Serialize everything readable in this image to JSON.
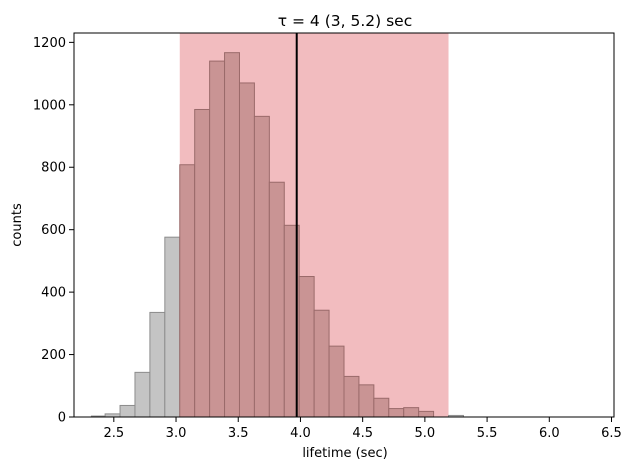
{
  "chart_data": {
    "type": "bar",
    "title": "τ = 4 (3, 5.2) sec",
    "xlabel": "lifetime (sec)",
    "ylabel": "counts",
    "xlim": [
      2.18,
      6.52
    ],
    "ylim": [
      0,
      1230
    ],
    "xticks": [
      {
        "value": 2.5,
        "label": "2.5"
      },
      {
        "value": 3.0,
        "label": "3.0"
      },
      {
        "value": 3.5,
        "label": "3.5"
      },
      {
        "value": 4.0,
        "label": "4.0"
      },
      {
        "value": 4.5,
        "label": "4.5"
      },
      {
        "value": 5.0,
        "label": "5.0"
      },
      {
        "value": 5.5,
        "label": "5.5"
      },
      {
        "value": 6.0,
        "label": "6.0"
      },
      {
        "value": 6.5,
        "label": "6.5"
      }
    ],
    "yticks": [
      {
        "value": 0,
        "label": "0"
      },
      {
        "value": 200,
        "label": "200"
      },
      {
        "value": 400,
        "label": "400"
      },
      {
        "value": 600,
        "label": "600"
      },
      {
        "value": 800,
        "label": "800"
      },
      {
        "value": 1000,
        "label": "1000"
      },
      {
        "value": 1200,
        "label": "1200"
      }
    ],
    "bin_edges": [
      2.32,
      2.43,
      2.55,
      2.67,
      2.79,
      2.91,
      3.03,
      3.15,
      3.27,
      3.39,
      3.51,
      3.63,
      3.75,
      3.87,
      3.99,
      4.11,
      4.23,
      4.35,
      4.47,
      4.59,
      4.71,
      4.83,
      4.95,
      5.07,
      5.19,
      5.31,
      5.43,
      5.55,
      5.67,
      5.79,
      5.91,
      6.03,
      6.15,
      6.27,
      6.39
    ],
    "counts": [
      3,
      10,
      37,
      143,
      335,
      576,
      808,
      985,
      1140,
      1167,
      1070,
      963,
      752,
      614,
      450,
      342,
      227,
      130,
      103,
      60,
      27,
      30,
      18,
      0,
      5,
      0,
      0,
      0,
      0,
      0,
      0,
      0,
      0,
      0
    ],
    "highlight_range": [
      3.03,
      5.19
    ],
    "vline": 3.97,
    "colors": {
      "bar_outside": "#c4c4c4",
      "bar_outside_edge": "#8c8c8c",
      "bar_inside": "#c99494",
      "bar_inside_edge": "#9a6a6a",
      "span": "#f2bcbf",
      "vline": "#000000"
    },
    "grid": false
  }
}
